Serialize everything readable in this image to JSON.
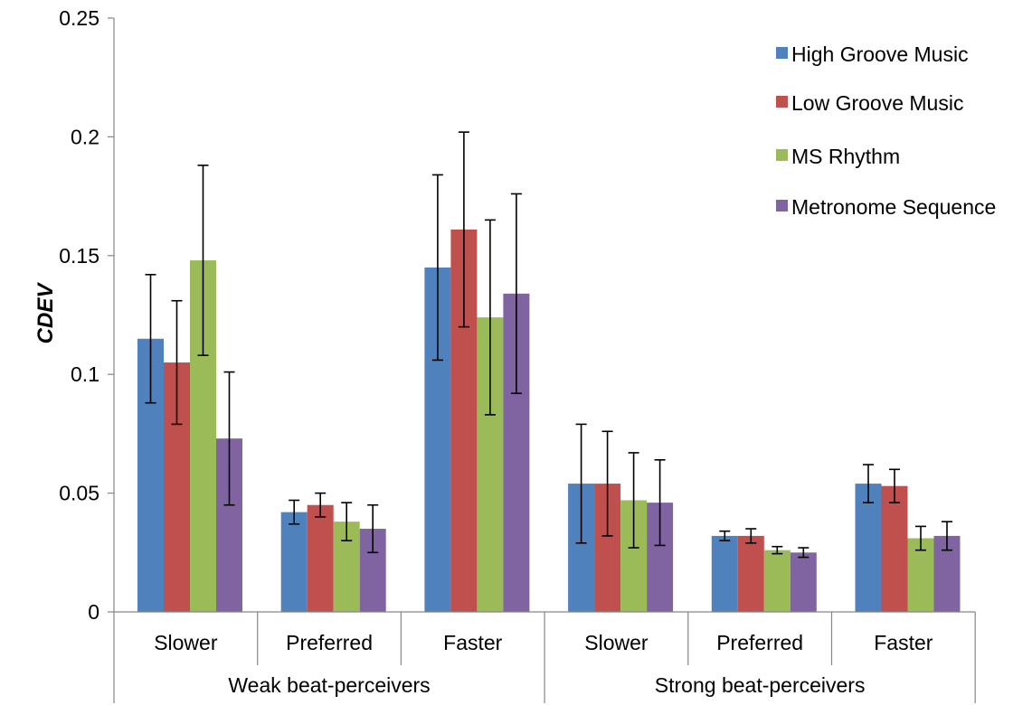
{
  "chart_data": {
    "type": "bar",
    "title": "",
    "xlabel": "",
    "ylabel": "CDEV",
    "ylim": [
      0,
      0.25
    ],
    "yticks": [
      "0",
      "0.05",
      "0.1",
      "0.15",
      "0.2",
      "0.25"
    ],
    "grid": false,
    "legend_position": "top-right",
    "groups": [
      {
        "label": "Weak beat-perceivers",
        "categories": [
          "Slower",
          "Preferred",
          "Faster"
        ]
      },
      {
        "label": "Strong beat-perceivers",
        "categories": [
          "Slower",
          "Preferred",
          "Faster"
        ]
      }
    ],
    "series": [
      {
        "name": "High Groove Music",
        "color": "#4F81BD",
        "values": [
          0.115,
          0.042,
          0.145,
          0.054,
          0.032,
          0.054
        ],
        "errors": [
          0.027,
          0.005,
          0.039,
          0.025,
          0.002,
          0.008
        ]
      },
      {
        "name": "Low Groove Music",
        "color": "#C0504D",
        "values": [
          0.105,
          0.045,
          0.161,
          0.054,
          0.032,
          0.053
        ],
        "errors": [
          0.026,
          0.005,
          0.041,
          0.022,
          0.003,
          0.007
        ]
      },
      {
        "name": "MS Rhythm",
        "color": "#9BBB59",
        "values": [
          0.148,
          0.038,
          0.124,
          0.047,
          0.026,
          0.031
        ],
        "errors": [
          0.04,
          0.008,
          0.041,
          0.02,
          0.0015,
          0.005
        ]
      },
      {
        "name": "Metronome Sequence",
        "color": "#8064A2",
        "values": [
          0.073,
          0.035,
          0.134,
          0.046,
          0.025,
          0.032
        ],
        "errors": [
          0.028,
          0.01,
          0.042,
          0.018,
          0.002,
          0.006
        ]
      }
    ]
  }
}
